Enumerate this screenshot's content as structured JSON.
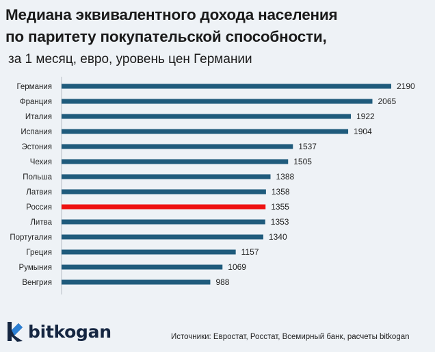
{
  "header": {
    "title_line1": "Медиана эквивалентного дохода населения",
    "title_line2": "по паритету покупательской способности,",
    "subtitle": "за 1 месяц, евро, уровень цен Германии"
  },
  "chart_data": {
    "type": "bar",
    "orientation": "horizontal",
    "categories": [
      "Германия",
      "Франция",
      "Италия",
      "Испания",
      "Эстония",
      "Чехия",
      "Польша",
      "Латвия",
      "Россия",
      "Литва",
      "Португалия",
      "Греция",
      "Румыния",
      "Венгрия"
    ],
    "values": [
      2190,
      2065,
      1922,
      1904,
      1537,
      1505,
      1388,
      1358,
      1355,
      1353,
      1340,
      1157,
      1069,
      988
    ],
    "data_labels": [
      "2190",
      "2065",
      "1922",
      "1904",
      "1537",
      "1505",
      "1388",
      "1358",
      "1355",
      "1353",
      "1340",
      "1157",
      "1069",
      "988"
    ],
    "highlight": "Россия",
    "colors": {
      "bar": "#1f5b7c",
      "highlight": "#ee1111",
      "axis": "#b5bcc4"
    },
    "xlim": [
      0,
      2190
    ],
    "grid": false,
    "legend": "none"
  },
  "footer": {
    "brand": "bitkogan",
    "logo_icon": "bitkogan-logo-icon",
    "brand_color": "#152641",
    "logo_accent": "#2b7fd4",
    "source": "Источники: Евростат, Росстат, Всемирный банк, расчеты bitkogan"
  }
}
